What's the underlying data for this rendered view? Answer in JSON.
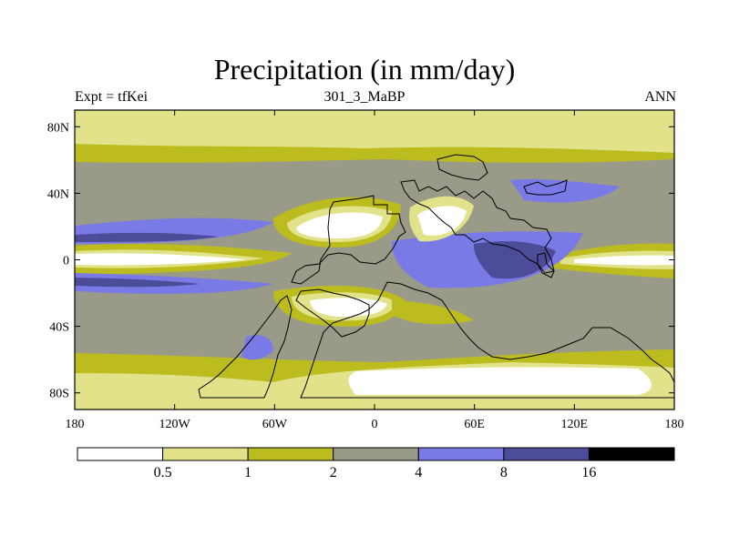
{
  "title": "Precipitation (in mm/day)",
  "subtitle_left": "Expt = tfKei",
  "subtitle_center": "301_3_MaBP",
  "subtitle_right": "ANN",
  "map": {
    "lon_range": [
      -180,
      180
    ],
    "lat_range": [
      -90,
      90
    ],
    "lat_ticks": [
      {
        "value": 80,
        "label": "80N"
      },
      {
        "value": 40,
        "label": "40N"
      },
      {
        "value": 0,
        "label": "0"
      },
      {
        "value": -40,
        "label": "40S"
      },
      {
        "value": -80,
        "label": "80S"
      }
    ],
    "lon_ticks": [
      {
        "value": -180,
        "label": "180"
      },
      {
        "value": -120,
        "label": "120W"
      },
      {
        "value": -60,
        "label": "60W"
      },
      {
        "value": 0,
        "label": "0"
      },
      {
        "value": 60,
        "label": "60E"
      },
      {
        "value": 120,
        "label": "120E"
      },
      {
        "value": 180,
        "label": "180"
      }
    ]
  },
  "colorbar": {
    "levels": [
      "0.5",
      "1",
      "2",
      "4",
      "8",
      "16"
    ],
    "colors": [
      "#ffffff",
      "#e2e28a",
      "#bcbc1e",
      "#9a9a88",
      "#7a7ae6",
      "#4c4c98",
      "#000000"
    ]
  }
}
